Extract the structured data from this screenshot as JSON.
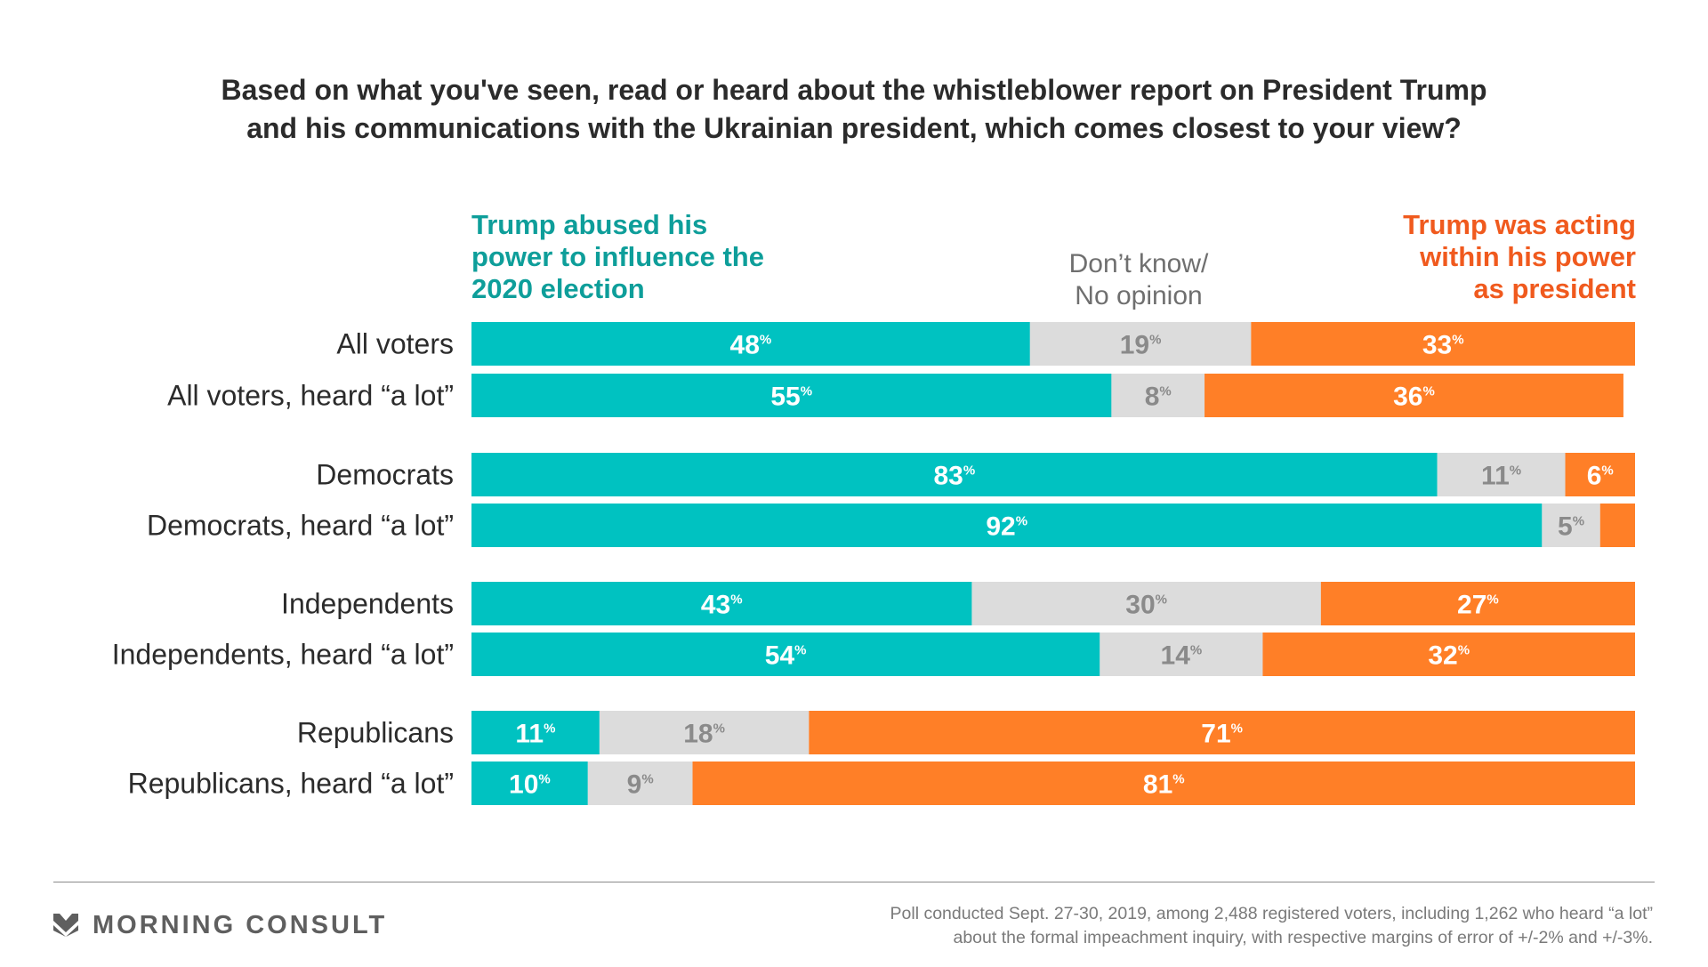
{
  "title": {
    "line1": "Based on what you've seen, read or heard about the whistleblower report on President Trump",
    "line2": "and his communications with the Ukrainian president, which comes closest to your view?"
  },
  "legend": {
    "abused": {
      "lines": [
        "Trump abused his",
        "power to influence the",
        "2020 election"
      ],
      "color": "#0e9e9a"
    },
    "dont_know": {
      "lines": [
        "Don’t know/",
        "No opinion"
      ],
      "color": "#6f6f6f"
    },
    "within": {
      "lines": [
        "Trump was acting",
        "within his power",
        "as president"
      ],
      "color": "#f05a1e"
    }
  },
  "chart_data": {
    "type": "bar",
    "orientation": "horizontal",
    "stacked": true,
    "xlim": [
      0,
      100
    ],
    "value_suffix": "%",
    "categories": [
      "All voters",
      "All voters, heard “a lot”",
      "Democrats",
      "Democrats, heard “a lot”",
      "Independents",
      "Independents, heard “a lot”",
      "Republicans",
      "Republicans, heard “a lot”"
    ],
    "series": [
      {
        "name": "Trump abused his power to influence the 2020 election",
        "color": "#00c2c1",
        "label_color": "#ffffff",
        "values": [
          48,
          55,
          83,
          92,
          43,
          54,
          11,
          10
        ],
        "labels": [
          "48",
          "55",
          "83",
          "92",
          "43",
          "54",
          "11",
          "10"
        ]
      },
      {
        "name": "Don’t know/ No opinion",
        "color": "#dcdcdc",
        "label_color": "#8a8a8a",
        "values": [
          19,
          8,
          11,
          5,
          30,
          14,
          18,
          9
        ],
        "labels": [
          "19",
          "8",
          "11",
          "5",
          "30",
          "14",
          "18",
          "9"
        ]
      },
      {
        "name": "Trump was acting within his power as president",
        "color": "#ff7f27",
        "label_color": "#ffffff",
        "values": [
          33,
          36,
          6,
          3,
          27,
          32,
          71,
          81
        ],
        "labels": [
          "33",
          "36",
          "6",
          "",
          "27",
          "32",
          "71",
          "81"
        ]
      }
    ]
  },
  "footer": {
    "brand": "MORNING CONSULT",
    "logo_icon": "morning-consult-chevron-icon",
    "note_line1": "Poll conducted Sept. 27-30, 2019, among 2,488 registered voters, including 1,262 who heard “a lot”",
    "note_line2": "about the formal impeachment inquiry, with respective margins of error of +/-2% and +/-3%."
  }
}
